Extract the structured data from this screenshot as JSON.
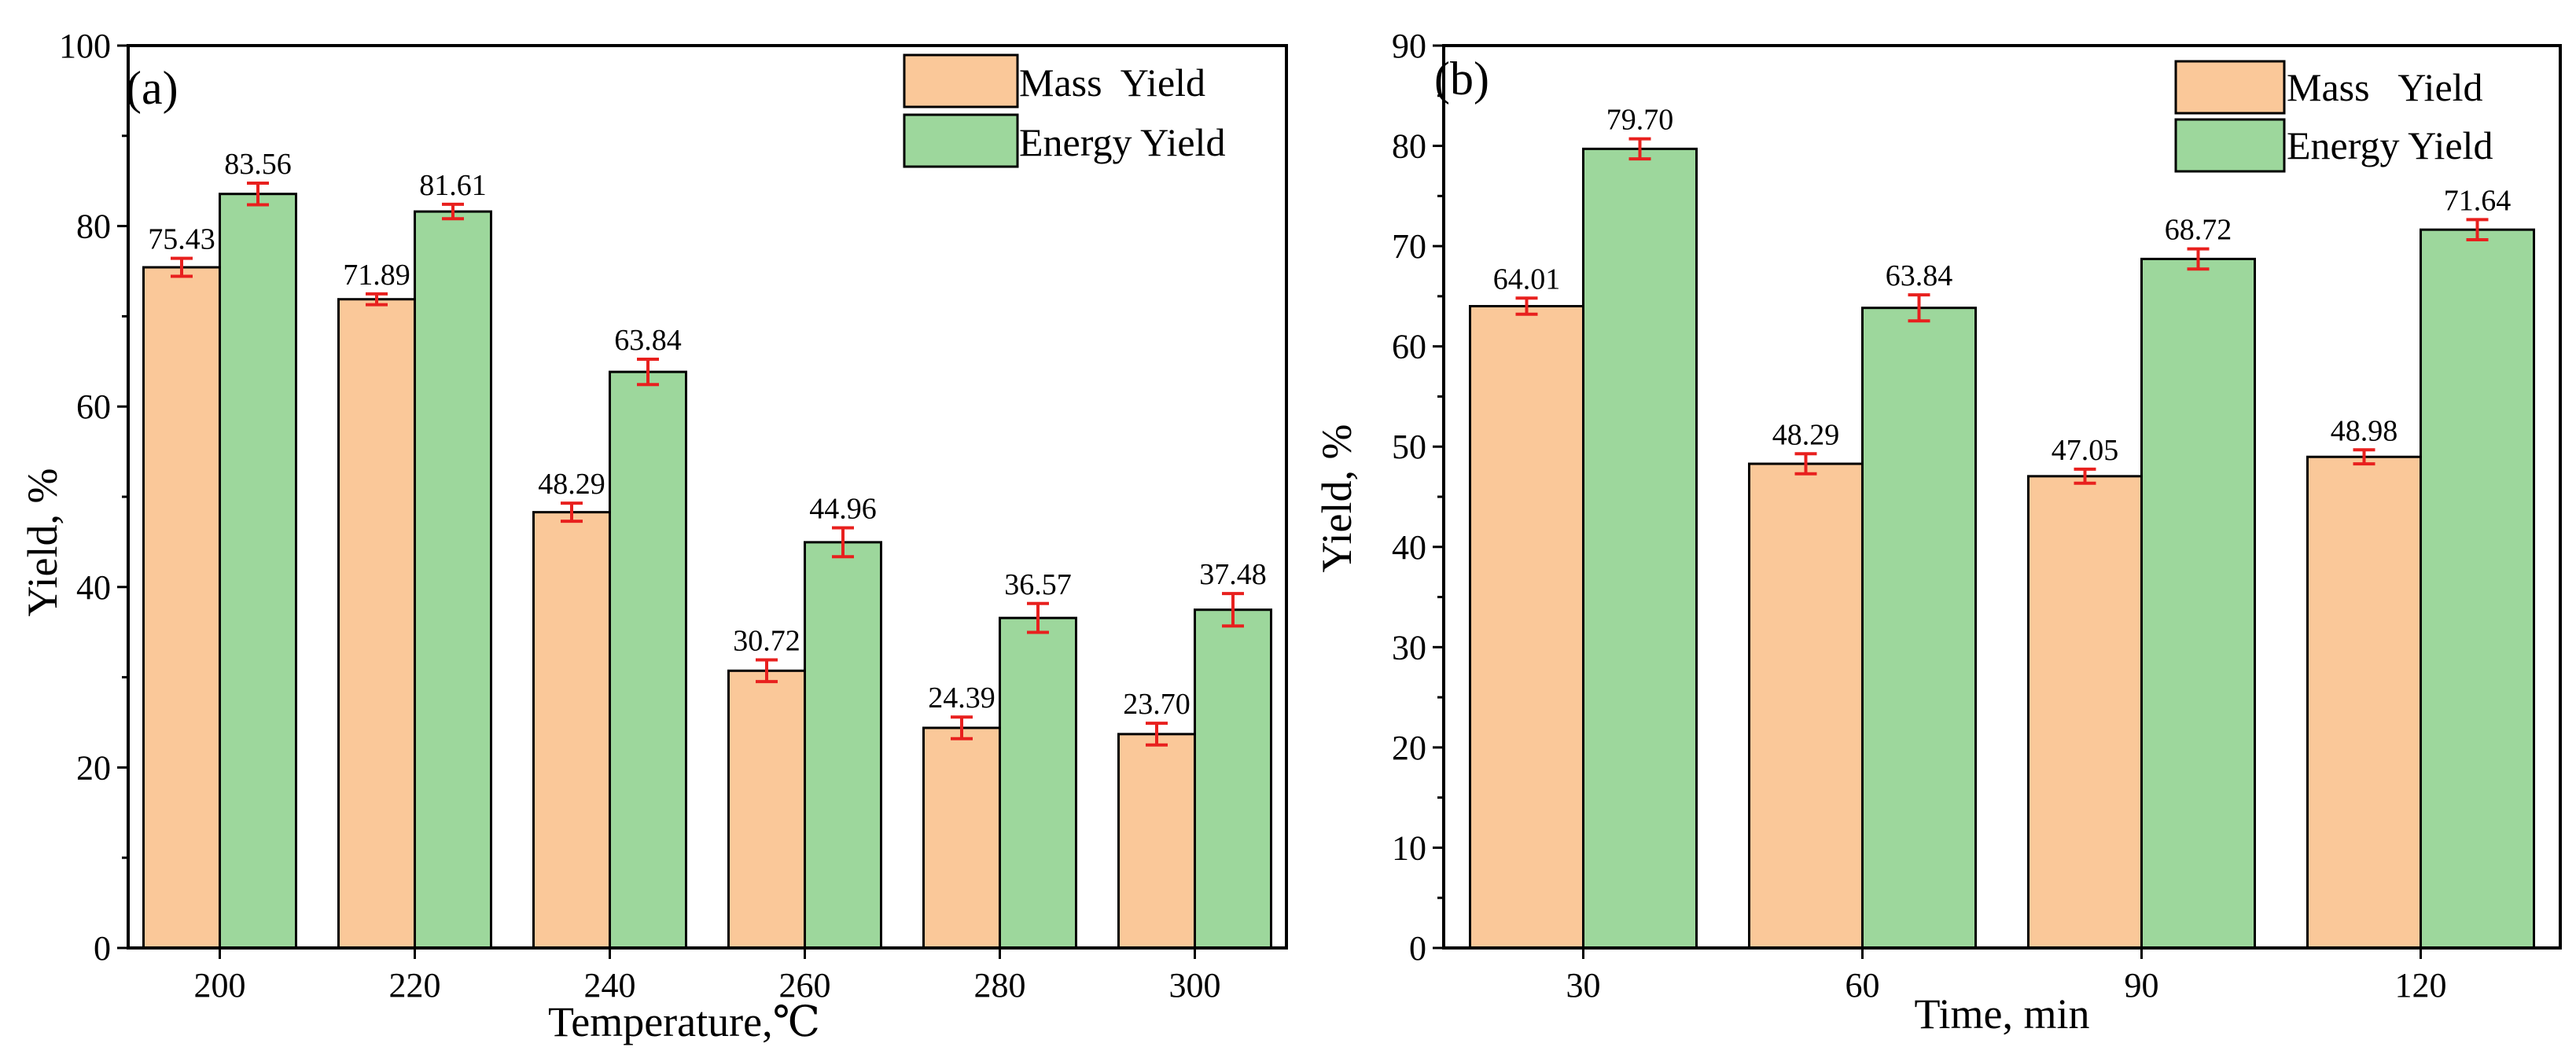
{
  "colors": {
    "mass": "#FAC899",
    "energy": "#9DD79C",
    "error": "#E8201E",
    "edge": "#000000"
  },
  "chart_data": [
    {
      "type": "bar",
      "panel_label": "(a)",
      "categories": [
        "200",
        "220",
        "240",
        "260",
        "280",
        "300"
      ],
      "series": [
        {
          "name": "Mass  Yield",
          "color": "#FAC899",
          "values": [
            75.43,
            71.89,
            48.29,
            30.72,
            24.39,
            23.7
          ],
          "labels": [
            "75.43",
            "71.89",
            "48.29",
            "30.72",
            "24.39",
            "23.70"
          ],
          "errors": [
            1.0,
            0.6,
            1.0,
            1.2,
            1.2,
            1.2
          ]
        },
        {
          "name": "Energy Yield",
          "color": "#9DD79C",
          "values": [
            83.56,
            81.61,
            63.84,
            44.96,
            36.57,
            37.48
          ],
          "labels": [
            "83.56",
            "81.61",
            "63.84",
            "44.96",
            "36.57",
            "37.48"
          ],
          "errors": [
            1.2,
            0.8,
            1.4,
            1.6,
            1.6,
            1.8
          ]
        }
      ],
      "xlabel": "Temperature,℃",
      "ylabel": "Yield, %",
      "ylim": [
        0,
        100
      ],
      "yticks": [
        "0",
        "20",
        "40",
        "60",
        "80",
        "100"
      ],
      "grid": false,
      "legend_position": "top-right"
    },
    {
      "type": "bar",
      "panel_label": "(b)",
      "categories": [
        "30",
        "60",
        "90",
        "120"
      ],
      "series": [
        {
          "name": "Mass   Yield",
          "color": "#FAC899",
          "values": [
            64.01,
            48.29,
            47.05,
            48.98
          ],
          "labels": [
            "64.01",
            "48.29",
            "47.05",
            "48.98"
          ],
          "errors": [
            0.8,
            1.0,
            0.7,
            0.7
          ]
        },
        {
          "name": "Energy Yield",
          "color": "#9DD79C",
          "values": [
            79.7,
            63.84,
            68.72,
            71.64
          ],
          "labels": [
            "79.70",
            "63.84",
            "68.72",
            "71.64"
          ],
          "errors": [
            1.0,
            1.3,
            1.0,
            1.0
          ]
        }
      ],
      "xlabel": "Time, min",
      "ylabel": "Yield, %",
      "ylim": [
        0,
        90
      ],
      "yticks": [
        "0",
        "10",
        "20",
        "30",
        "40",
        "50",
        "60",
        "70",
        "80",
        "90"
      ],
      "grid": false,
      "legend_position": "top-right"
    }
  ]
}
